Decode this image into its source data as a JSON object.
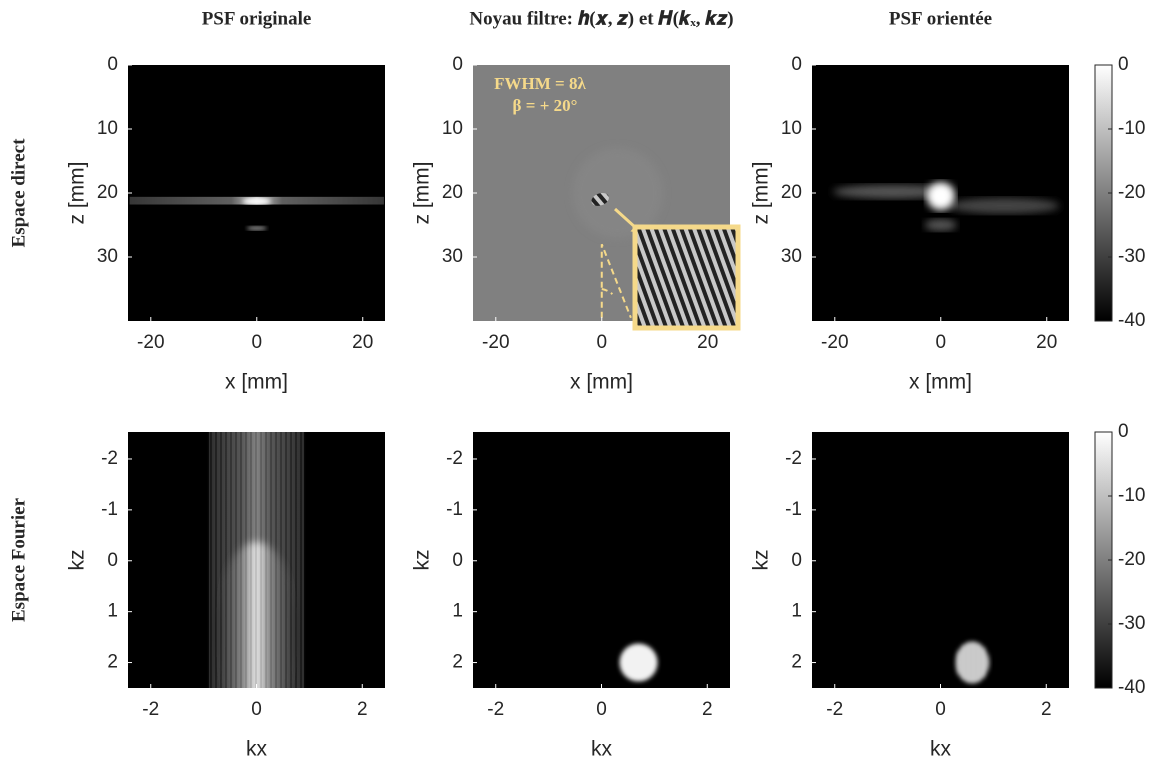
{
  "row_labels": [
    "Espace direct",
    "Espace Fourier"
  ],
  "chart_data": [
    {
      "type": "image",
      "title": "PSF originale",
      "xlabel": "x [mm]",
      "ylabel": "z [mm]",
      "xlim": [
        -24.3,
        24.2
      ],
      "ylim": [
        0,
        40
      ],
      "yreverse": true,
      "xticks": [
        -20,
        0,
        20
      ],
      "yticks": [
        0,
        10,
        20,
        30
      ]
    },
    {
      "type": "image",
      "title": "Noyau filtre: 𝒉(𝒙, 𝒛) et 𝑯(𝒌ₓ, 𝒌𝒛)",
      "xlabel": "x [mm]",
      "ylabel": "z [mm]",
      "xlim": [
        -24.3,
        24.2
      ],
      "ylim": [
        0,
        40
      ],
      "yreverse": true,
      "xticks": [
        -20,
        0,
        20
      ],
      "yticks": [
        0,
        10,
        20,
        30
      ],
      "annotations": [
        "FWHM = 8λ",
        "β = + 20°"
      ]
    },
    {
      "type": "image",
      "title": "PSF orientée",
      "xlabel": "x [mm]",
      "ylabel": "z [mm]",
      "xlim": [
        -24.3,
        24.2
      ],
      "ylim": [
        0,
        40
      ],
      "yreverse": true,
      "xticks": [
        -20,
        0,
        20
      ],
      "yticks": [
        0,
        10,
        20,
        30
      ],
      "colorbar": {
        "lim": [
          -40,
          0
        ],
        "ticks": [
          0,
          -10,
          -20,
          -30,
          -40
        ]
      }
    },
    {
      "type": "image",
      "xlabel": "kx",
      "ylabel": "kz",
      "xlim": [
        -2.43,
        2.43
      ],
      "ylim": [
        -2.53,
        2.5
      ],
      "yreverse": true,
      "xticks": [
        -2,
        0,
        2
      ],
      "yticks": [
        -2,
        -1,
        0,
        1,
        2
      ]
    },
    {
      "type": "image",
      "xlabel": "kx",
      "ylabel": "kz",
      "xlim": [
        -2.43,
        2.43
      ],
      "ylim": [
        -2.53,
        2.5
      ],
      "yreverse": true,
      "xticks": [
        -2,
        0,
        2
      ],
      "yticks": [
        -2,
        -1,
        0,
        1,
        2
      ]
    },
    {
      "type": "image",
      "xlabel": "kx",
      "ylabel": "kz",
      "xlim": [
        -2.43,
        2.43
      ],
      "ylim": [
        -2.53,
        2.5
      ],
      "yreverse": true,
      "xticks": [
        -2,
        0,
        2
      ],
      "yticks": [
        -2,
        -1,
        0,
        1,
        2
      ],
      "colorbar": {
        "lim": [
          -40,
          0
        ],
        "ticks": [
          0,
          -10,
          -20,
          -30,
          -40
        ]
      }
    }
  ]
}
